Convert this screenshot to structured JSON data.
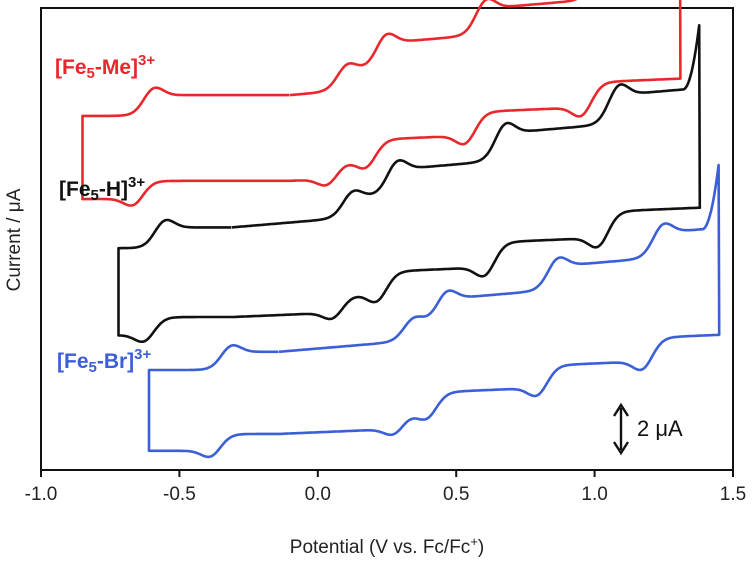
{
  "chart_data": {
    "type": "line",
    "xlabel": "Potential (V vs. Fc/Fc",
    "xlabel_sup": "+",
    "xlabel_end": ")",
    "ylabel": "Current / μA",
    "xlim": [
      -1.0,
      1.5
    ],
    "x_ticks": [
      -1.0,
      -0.5,
      0.0,
      0.5,
      1.0,
      1.5
    ],
    "x_tick_labels": [
      "-1.0",
      "-0.5",
      "0.0",
      "0.5",
      "1.0",
      "1.5"
    ],
    "scale_bar": {
      "value": 2,
      "label": "2 μA"
    },
    "grid": false,
    "series": [
      {
        "name": "[Fe5-Me]3+",
        "label_parts": [
          "[Fe",
          "5",
          "-Me]",
          "3+"
        ],
        "color": "#e8282c",
        "offset": 0,
        "start": -0.1,
        "start_current": -0.3,
        "end": -0.85,
        "vertex": 1.31,
        "peaks": [
          {
            "e": -0.6,
            "ipa": 1.6,
            "ipc": 1.4
          },
          {
            "e": 0.1,
            "ipa": 1.5,
            "ipc": 1.3
          },
          {
            "e": 0.24,
            "ipa": 1.9,
            "ipc": 1.6
          },
          {
            "e": 0.6,
            "ipa": 2.0,
            "ipc": 1.8
          },
          {
            "e": 1.02,
            "ipa": 2.1,
            "ipc": 1.9
          }
        ]
      },
      {
        "name": "[Fe5-H]3+",
        "label_parts": [
          "[Fe",
          "5",
          "-H]",
          "3+"
        ],
        "color": "#111111",
        "offset": -6.3,
        "start": -0.31,
        "start_current": -0.3,
        "end": -0.72,
        "vertex": 1.38,
        "peaks": [
          {
            "e": -0.56,
            "ipa": 1.6,
            "ipc": 1.4
          },
          {
            "e": 0.12,
            "ipa": 1.5,
            "ipc": 1.3
          },
          {
            "e": 0.28,
            "ipa": 1.9,
            "ipc": 1.7
          },
          {
            "e": 0.67,
            "ipa": 2.1,
            "ipc": 1.9
          },
          {
            "e": 1.08,
            "ipa": 2.2,
            "ipc": 2.0
          }
        ]
      },
      {
        "name": "[Fe5-Br]3+",
        "label_parts": [
          "[Fe",
          "5",
          "-Br]",
          "3+"
        ],
        "color": "#3a5fd6",
        "offset": -12.3,
        "start": -0.14,
        "start_current": -0.3,
        "end": -0.61,
        "vertex": 1.45,
        "peaks": [
          {
            "e": -0.32,
            "ipa": 1.4,
            "ipc": 1.3
          },
          {
            "e": 0.34,
            "ipa": 1.3,
            "ipc": 1.2
          },
          {
            "e": 0.46,
            "ipa": 1.7,
            "ipc": 1.5
          },
          {
            "e": 0.86,
            "ipa": 1.8,
            "ipc": 1.7
          },
          {
            "e": 1.24,
            "ipa": 1.9,
            "ipc": 1.8
          }
        ]
      }
    ]
  }
}
